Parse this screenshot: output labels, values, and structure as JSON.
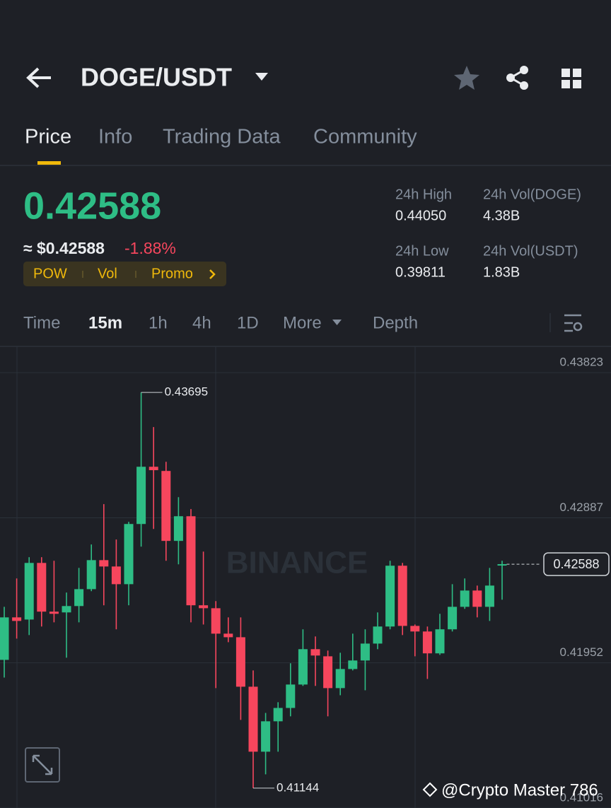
{
  "header": {
    "pair": "DOGE/USDT"
  },
  "tabs": [
    "Price",
    "Info",
    "Trading Data",
    "Community"
  ],
  "ticker": {
    "last_price": "0.42588",
    "fiat_price": "≈ $0.42588",
    "change": "-1.88%",
    "tags": [
      "POW",
      "Vol",
      "Promo"
    ],
    "stats": [
      {
        "label": "24h High",
        "value": "0.44050"
      },
      {
        "label": "24h Vol(DOGE)",
        "value": "4.38B"
      },
      {
        "label": "24h Low",
        "value": "0.39811"
      },
      {
        "label": "24h Vol(USDT)",
        "value": "1.83B"
      }
    ]
  },
  "timeframes": [
    "Time",
    "15m",
    "1h",
    "4h",
    "1D",
    "More",
    "Depth"
  ],
  "chart_data": {
    "type": "candlestick",
    "ylim": [
      0.41016,
      0.43992
    ],
    "yticks": [
      0.41016,
      0.41952,
      0.42887,
      0.43823
    ],
    "grid": true,
    "up_color": "#2ebd85",
    "down_color": "#f6465d",
    "watermark": "BINANCE",
    "open": [
      0.41971,
      0.42245,
      0.42231,
      0.42596,
      0.42282,
      0.42277,
      0.42318,
      0.42427,
      0.42614,
      0.42573,
      0.42459,
      0.42847,
      0.43216,
      0.43189,
      0.42738,
      0.42897,
      0.42323,
      0.42304,
      0.4214,
      0.42117,
      0.41798,
      0.41379,
      0.41575,
      0.41661,
      0.41812,
      0.4204,
      0.41994,
      0.41789,
      0.41912,
      0.41967,
      0.42076,
      0.42186,
      0.42578,
      0.4219,
      0.42154,
      0.42013,
      0.42168,
      0.42313,
      0.42418,
      0.42313,
      0.42579
    ],
    "high": [
      0.42313,
      0.42496,
      0.42633,
      0.42633,
      0.4261,
      0.42405,
      0.42564,
      0.42715,
      0.42975,
      0.42747,
      0.42861,
      0.43695,
      0.43472,
      0.43248,
      0.4302,
      0.42943,
      0.42669,
      0.4235,
      0.42245,
      0.42245,
      0.41903,
      0.41629,
      0.41698,
      0.41949,
      0.42168,
      0.42122,
      0.42031,
      0.42017,
      0.4214,
      0.42168,
      0.42277,
      0.4261,
      0.42596,
      0.42199,
      0.42186,
      0.42268,
      0.42459,
      0.42496,
      0.4245,
      0.42564,
      0.4261
    ],
    "low": [
      0.41857,
      0.42108,
      0.42131,
      0.42186,
      0.42213,
      0.41985,
      0.42213,
      0.42414,
      0.42323,
      0.42168,
      0.42323,
      0.42701,
      0.42815,
      0.4261,
      0.42587,
      0.42213,
      0.42199,
      0.41789,
      0.42085,
      0.41584,
      0.41144,
      0.41233,
      0.41379,
      0.41607,
      0.41803,
      0.41803,
      0.41607,
      0.41743,
      0.41903,
      0.41775,
      0.4204,
      0.42168,
      0.42131,
      0.41994,
      0.41848,
      0.42003,
      0.42154,
      0.423,
      0.42245,
      0.42222,
      0.42359
    ],
    "close": [
      0.42245,
      0.42222,
      0.42596,
      0.42282,
      0.42268,
      0.42318,
      0.42427,
      0.42614,
      0.42573,
      0.42459,
      0.42847,
      0.43216,
      0.43194,
      0.42738,
      0.42897,
      0.42323,
      0.42304,
      0.4214,
      0.42117,
      0.41798,
      0.41379,
      0.41575,
      0.41661,
      0.41812,
      0.4204,
      0.41999,
      0.41789,
      0.41912,
      0.41967,
      0.42076,
      0.42186,
      0.42578,
      0.4219,
      0.42154,
      0.42013,
      0.42168,
      0.42313,
      0.42418,
      0.42313,
      0.4245,
      0.42588
    ]
  },
  "overlay": "@Crypto Master 786"
}
